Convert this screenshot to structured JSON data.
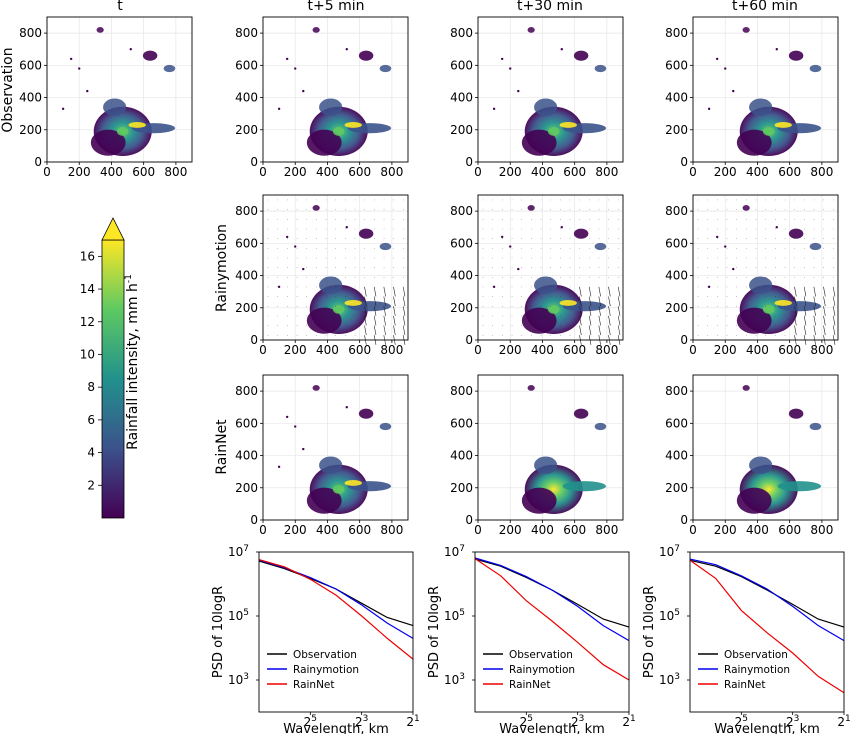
{
  "figure": {
    "column_titles": [
      "t",
      "t+5 min",
      "t+30 min",
      "t+60 min"
    ],
    "row_labels": [
      "Observation",
      "Rainymotion",
      "RainNet",
      "PSD of 10logR"
    ],
    "map_ticks": [
      "0",
      "200",
      "400",
      "600",
      "800"
    ],
    "colorbar": {
      "label": "Rainfall intensity, mm h",
      "label_sup": "-1",
      "ticks": [
        "2",
        "4",
        "6",
        "8",
        "10",
        "12",
        "14",
        "16"
      ],
      "range": [
        0,
        17
      ],
      "colormap": [
        "#440154",
        "#3b528b",
        "#21918c",
        "#5ec962",
        "#fde725"
      ]
    }
  },
  "chart_data": [
    {
      "type": "heatmap",
      "panel": "Observation t",
      "title": "t",
      "ylabel": "Observation",
      "xlim": [
        0,
        900
      ],
      "ylim": [
        0,
        900
      ],
      "xticks": [
        0,
        200,
        400,
        600,
        800
      ],
      "yticks": [
        0,
        200,
        400,
        600,
        800
      ]
    },
    {
      "type": "heatmap",
      "panel": "Observation t+5 min",
      "title": "t+5 min",
      "xlim": [
        0,
        900
      ],
      "ylim": [
        0,
        900
      ],
      "xticks": [
        0,
        200,
        400,
        600,
        800
      ],
      "yticks": [
        0,
        200,
        400,
        600,
        800
      ]
    },
    {
      "type": "heatmap",
      "panel": "Observation t+30 min",
      "title": "t+30 min",
      "xlim": [
        0,
        900
      ],
      "ylim": [
        0,
        900
      ],
      "xticks": [
        0,
        200,
        400,
        600,
        800
      ],
      "yticks": [
        0,
        200,
        400,
        600,
        800
      ]
    },
    {
      "type": "heatmap",
      "panel": "Observation t+60 min",
      "title": "t+60 min",
      "xlim": [
        0,
        900
      ],
      "ylim": [
        0,
        900
      ],
      "xticks": [
        0,
        200,
        400,
        600,
        800
      ],
      "yticks": [
        0,
        200,
        400,
        600,
        800
      ]
    },
    {
      "type": "heatmap",
      "panel": "Rainymotion t+5 min",
      "ylabel": "Rainymotion",
      "xlim": [
        0,
        900
      ],
      "ylim": [
        0,
        900
      ],
      "xticks": [
        0,
        200,
        400,
        600,
        800
      ],
      "yticks": [
        0,
        200,
        400,
        600,
        800
      ],
      "overlay": "motion vectors"
    },
    {
      "type": "heatmap",
      "panel": "Rainymotion t+30 min",
      "xlim": [
        0,
        900
      ],
      "ylim": [
        0,
        900
      ],
      "xticks": [
        0,
        200,
        400,
        600,
        800
      ],
      "yticks": [
        0,
        200,
        400,
        600,
        800
      ],
      "overlay": "motion vectors"
    },
    {
      "type": "heatmap",
      "panel": "Rainymotion t+60 min",
      "xlim": [
        0,
        900
      ],
      "ylim": [
        0,
        900
      ],
      "xticks": [
        0,
        200,
        400,
        600,
        800
      ],
      "yticks": [
        0,
        200,
        400,
        600,
        800
      ],
      "overlay": "motion vectors"
    },
    {
      "type": "heatmap",
      "panel": "RainNet t+5 min",
      "ylabel": "RainNet",
      "xlim": [
        0,
        900
      ],
      "ylim": [
        0,
        900
      ],
      "xticks": [
        0,
        200,
        400,
        600,
        800
      ],
      "yticks": [
        0,
        200,
        400,
        600,
        800
      ]
    },
    {
      "type": "heatmap",
      "panel": "RainNet t+30 min",
      "xlim": [
        0,
        900
      ],
      "ylim": [
        0,
        900
      ],
      "xticks": [
        0,
        200,
        400,
        600,
        800
      ],
      "yticks": [
        0,
        200,
        400,
        600,
        800
      ],
      "smoothed": true
    },
    {
      "type": "heatmap",
      "panel": "RainNet t+60 min",
      "xlim": [
        0,
        900
      ],
      "ylim": [
        0,
        900
      ],
      "xticks": [
        0,
        200,
        400,
        600,
        800
      ],
      "yticks": [
        0,
        200,
        400,
        600,
        800
      ],
      "smoothed": true
    },
    {
      "type": "line",
      "panel": "PSD t+5 min",
      "xlabel": "Wavelength, km",
      "ylabel": "PSD of 10logR",
      "x_scale": "log2 reversed",
      "x": [
        128,
        64,
        32,
        16,
        8,
        4,
        2
      ],
      "xlim": [
        128,
        2
      ],
      "ylim": [
        100,
        10000000
      ],
      "y_scale": "log",
      "xtick_labels": [
        "2^5",
        "2^3",
        "2^1"
      ],
      "ytick_labels": [
        "10^3",
        "10^5",
        "10^7"
      ],
      "legend": "lower-left",
      "series": [
        {
          "name": "Observation",
          "color": "#000000",
          "values": [
            5200000,
            3000000,
            1500000,
            700000,
            250000,
            90000,
            50000
          ]
        },
        {
          "name": "Rainymotion",
          "color": "#0000ee",
          "values": [
            5600000,
            3200000,
            1600000,
            700000,
            220000,
            60000,
            20000
          ]
        },
        {
          "name": "RainNet",
          "color": "#ee0000",
          "values": [
            5800000,
            3400000,
            1400000,
            450000,
            100000,
            20000,
            4500
          ]
        }
      ]
    },
    {
      "type": "line",
      "panel": "PSD t+30 min",
      "xlabel": "Wavelength, km",
      "ylabel": "PSD of 10logR",
      "x_scale": "log2 reversed",
      "x": [
        128,
        64,
        32,
        16,
        8,
        4,
        2
      ],
      "xlim": [
        128,
        2
      ],
      "ylim": [
        100,
        10000000
      ],
      "y_scale": "log",
      "xtick_labels": [
        "2^5",
        "2^3",
        "2^1"
      ],
      "ytick_labels": [
        "10^3",
        "10^5",
        "10^7"
      ],
      "legend": "lower-left",
      "series": [
        {
          "name": "Observation",
          "color": "#000000",
          "values": [
            6000000,
            3600000,
            1600000,
            650000,
            230000,
            80000,
            45000
          ]
        },
        {
          "name": "Rainymotion",
          "color": "#0000ee",
          "values": [
            6500000,
            3800000,
            1700000,
            650000,
            200000,
            50000,
            17000
          ]
        },
        {
          "name": "RainNet",
          "color": "#ee0000",
          "values": [
            6200000,
            1800000,
            300000,
            70000,
            15000,
            3000,
            1000
          ]
        }
      ]
    },
    {
      "type": "line",
      "panel": "PSD t+60 min",
      "xlabel": "Wavelength, km",
      "ylabel": "PSD of 10logR",
      "x_scale": "log2 reversed",
      "x": [
        128,
        64,
        32,
        16,
        8,
        4,
        2
      ],
      "xlim": [
        128,
        2
      ],
      "ylim": [
        100,
        10000000
      ],
      "y_scale": "log",
      "xtick_labels": [
        "2^5",
        "2^3",
        "2^1"
      ],
      "ytick_labels": [
        "10^3",
        "10^5",
        "10^7"
      ],
      "legend": "lower-left",
      "series": [
        {
          "name": "Observation",
          "color": "#000000",
          "values": [
            5500000,
            3600000,
            1700000,
            650000,
            230000,
            80000,
            45000
          ]
        },
        {
          "name": "Rainymotion",
          "color": "#0000ee",
          "values": [
            6000000,
            4000000,
            1800000,
            700000,
            200000,
            50000,
            17000
          ]
        },
        {
          "name": "RainNet",
          "color": "#ee0000",
          "values": [
            5500000,
            1500000,
            150000,
            30000,
            7000,
            1300,
            400
          ]
        }
      ]
    }
  ]
}
